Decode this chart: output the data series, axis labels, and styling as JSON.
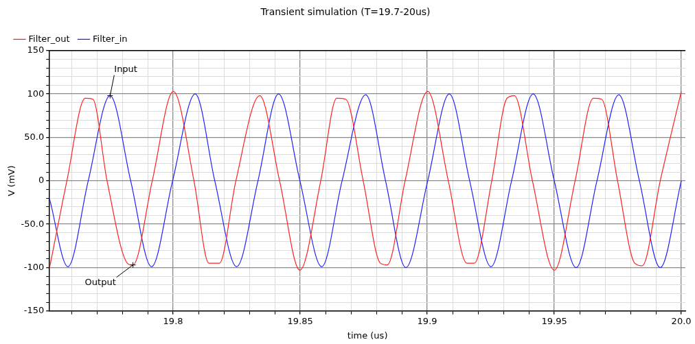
{
  "chart_data": {
    "type": "line",
    "title": "Transient simulation (T=19.7-20us)",
    "xlabel": "time (us)",
    "ylabel": "V (mV)",
    "legend": "top left",
    "grid": true,
    "marker": "none",
    "line_style": "solid",
    "xlim": [
      19.7514,
      20.0016
    ],
    "ylim": [
      -150,
      150
    ],
    "xticks": [
      {
        "value": 19.76,
        "label": null
      },
      {
        "value": 19.77,
        "label": null
      },
      {
        "value": 19.78,
        "label": null
      },
      {
        "value": 19.79,
        "label": null
      },
      19.8,
      {
        "value": 19.81,
        "label": null
      },
      {
        "value": 19.82,
        "label": null
      },
      {
        "value": 19.83,
        "label": null
      },
      {
        "value": 19.84,
        "label": null
      },
      19.85,
      {
        "value": 19.86,
        "label": null
      },
      {
        "value": 19.87,
        "label": null
      },
      {
        "value": 19.88,
        "label": null
      },
      {
        "value": 19.89,
        "label": null
      },
      19.9,
      {
        "value": 19.91,
        "label": null
      },
      {
        "value": 19.92,
        "label": null
      },
      {
        "value": 19.93,
        "label": null
      },
      {
        "value": 19.94,
        "label": null
      },
      19.95,
      {
        "value": 19.96,
        "label": null
      },
      {
        "value": 19.97,
        "label": null
      },
      {
        "value": 19.98,
        "label": null
      },
      {
        "value": 19.99,
        "label": null
      },
      {
        "value": 20.0,
        "label": "20.0"
      }
    ],
    "yticks": [
      -150,
      {
        "value": -140,
        "label": null
      },
      {
        "value": -130,
        "label": null
      },
      {
        "value": -120,
        "label": null
      },
      {
        "value": -110,
        "label": null
      },
      -100,
      {
        "value": -90,
        "label": null
      },
      {
        "value": -80,
        "label": null
      },
      {
        "value": -70,
        "label": null
      },
      {
        "value": -60,
        "label": null
      },
      {
        "value": -50,
        "label": "-50.0"
      },
      {
        "value": -40,
        "label": null
      },
      {
        "value": -30,
        "label": null
      },
      {
        "value": -20,
        "label": null
      },
      {
        "value": -10,
        "label": null
      },
      0,
      {
        "value": 10,
        "label": null
      },
      {
        "value": 20,
        "label": null
      },
      {
        "value": 30,
        "label": null
      },
      {
        "value": 40,
        "label": null
      },
      {
        "value": 50,
        "label": "50.0"
      },
      {
        "value": 60,
        "label": null
      },
      {
        "value": 70,
        "label": null
      },
      {
        "value": 80,
        "label": null
      },
      {
        "value": 90,
        "label": null
      },
      100,
      {
        "value": 110,
        "label": null
      },
      {
        "value": 120,
        "label": null
      },
      {
        "value": 130,
        "label": null
      },
      {
        "value": 140,
        "label": null
      },
      150
    ],
    "series": [
      {
        "name": "Filter_out",
        "color": "#ff2020",
        "x": [
          19.7514,
          19.7582,
          19.7654,
          19.7684,
          19.774,
          19.7824,
          19.7842,
          19.7918,
          19.8001,
          19.8082,
          19.8141,
          19.8182,
          19.8247,
          19.8341,
          19.8419,
          19.8499,
          19.8581,
          19.8644,
          19.8679,
          19.8748,
          19.8816,
          19.8843,
          19.8913,
          19.9002,
          19.9083,
          19.9156,
          19.9185,
          19.9254,
          19.9314,
          19.9343,
          19.9414,
          19.95,
          19.9582,
          19.9654,
          19.9686,
          19.9749,
          19.9817,
          19.9846,
          19.9917,
          20.0
        ],
        "values": [
          -100,
          0,
          95,
          94,
          0,
          -96,
          -97,
          0,
          103,
          0,
          -95,
          -95,
          0,
          98,
          0,
          -103,
          0,
          95,
          94,
          0,
          -95,
          -97,
          0,
          103,
          0,
          -95,
          -95,
          0,
          95,
          98,
          0,
          -103,
          0,
          95,
          94,
          0,
          -95,
          -98,
          0,
          103
        ]
      },
      {
        "name": "Filter_in",
        "color": "#2020ff",
        "x": [
          19.7514,
          19.7586,
          19.7666,
          19.7752,
          19.7833,
          19.7915,
          19.7998,
          19.8087,
          19.8164,
          19.825,
          19.8334,
          19.8415,
          19.8499,
          19.8585,
          19.8665,
          19.8758,
          19.8836,
          19.8916,
          19.9002,
          19.9087,
          19.9167,
          19.9251,
          19.9332,
          19.9417,
          19.95,
          19.9586,
          19.9668,
          19.9754,
          19.9835,
          19.9917,
          20.0
        ],
        "values": [
          -21,
          -99,
          0,
          98,
          0,
          -99,
          0,
          100,
          0,
          -99,
          0,
          100,
          0,
          -99,
          0,
          99,
          0,
          -100,
          0,
          100,
          0,
          -99,
          0,
          100,
          0,
          -100,
          0,
          99,
          0,
          -100,
          0
        ]
      }
    ],
    "annotations": [
      {
        "text": "Input",
        "x": 19.7752,
        "y": 98
      },
      {
        "text": "Output",
        "x": 19.7842,
        "y": -97
      }
    ]
  }
}
